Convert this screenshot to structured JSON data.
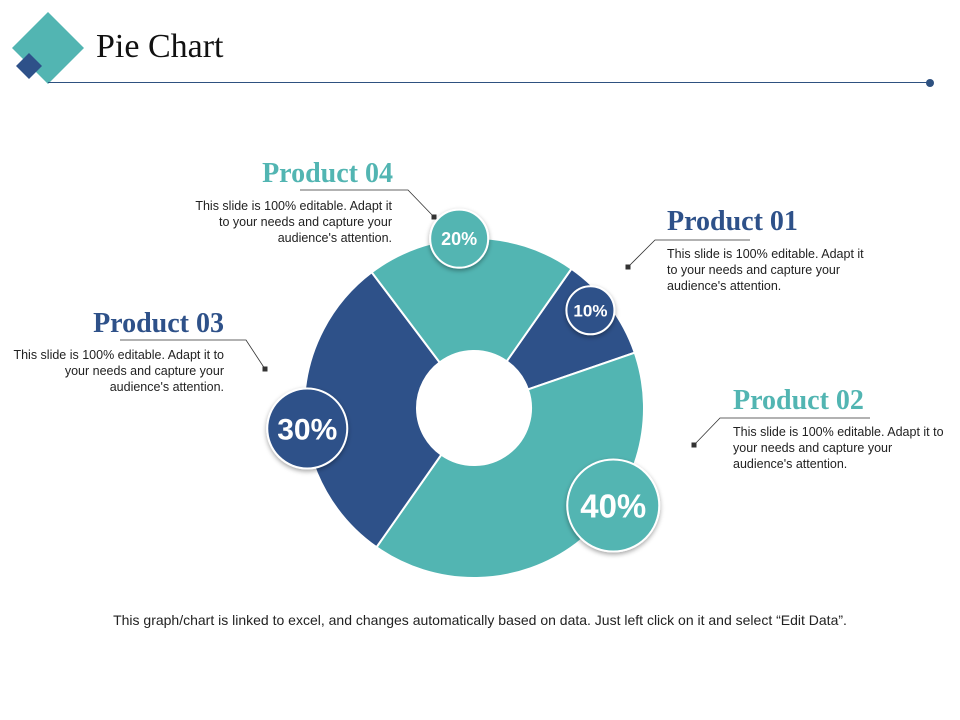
{
  "page": {
    "title": "Pie Chart"
  },
  "colors": {
    "navy": "#2e5189",
    "teal": "#52b5b2",
    "line": "#2e5180"
  },
  "chart_data": {
    "type": "pie",
    "variant": "doughnut",
    "categories": [
      "Product 01",
      "Product 02",
      "Product 03",
      "Product 04"
    ],
    "values": [
      10,
      40,
      30,
      20
    ],
    "labels": [
      "10%",
      "40%",
      "30%",
      "20%"
    ],
    "colors": [
      "#2e5189",
      "#52b5b2",
      "#2e5189",
      "#52b5b2"
    ]
  },
  "products": [
    {
      "title": "Product 01",
      "desc": "This slide is 100% editable. Adapt it to your needs and capture your audience's attention."
    },
    {
      "title": "Product 02",
      "desc": "This slide is 100% editable. Adapt it to your needs and capture your audience's attention."
    },
    {
      "title": "Product 03",
      "desc": "This slide is 100% editable. Adapt it to your needs and capture your audience's attention."
    },
    {
      "title": "Product 04",
      "desc": "This slide is 100% editable. Adapt it to your needs and capture your audience's attention."
    }
  ],
  "footer": "This graph/chart is linked to excel, and changes automatically based on data. Just left click on it and select “Edit Data”."
}
